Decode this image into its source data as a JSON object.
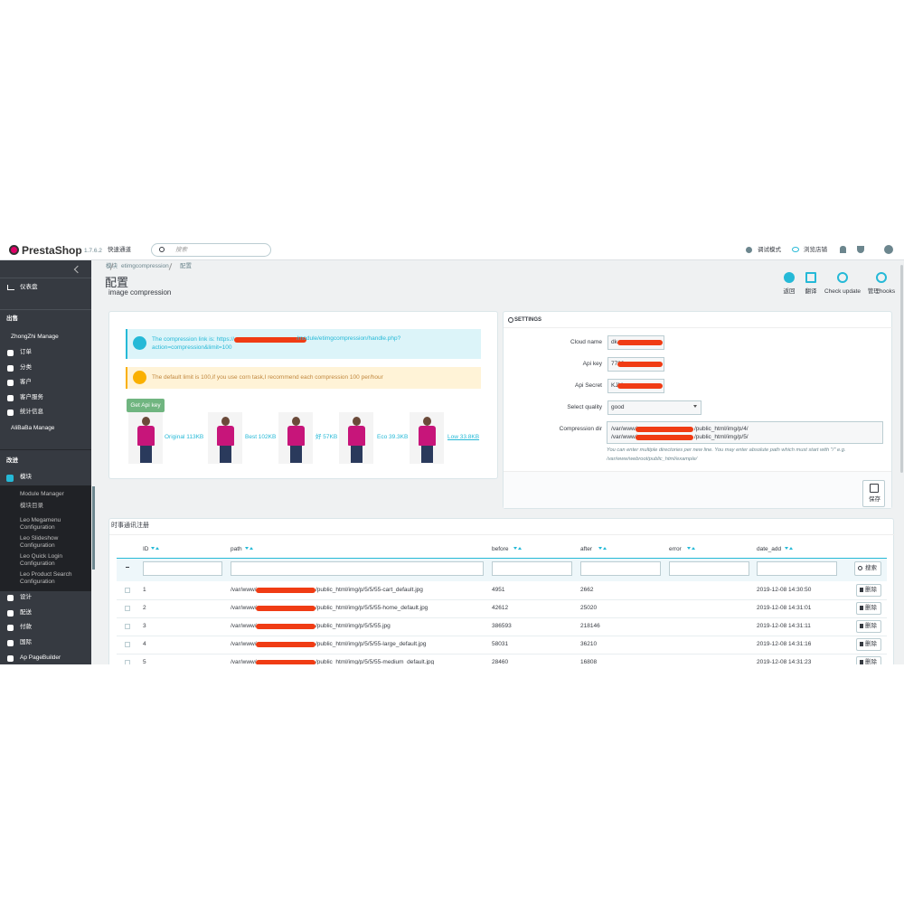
{
  "header": {
    "logo": "PrestaShop",
    "version": "1.7.6.2",
    "quick_access": "快速通道",
    "search_placeholder": "搜索",
    "debug_mode": "调试模式",
    "view_shop": "浏览店铺"
  },
  "sidebar": {
    "dashboard": "仪表盘",
    "sell": {
      "title": "出售",
      "items": [
        "ZhongZhi Manage",
        "订单",
        "分类",
        "客户",
        "客户服务",
        "统计信息",
        "AliBaBa Manage"
      ]
    },
    "improve": {
      "title": "改进",
      "active": "模块",
      "submenu": [
        "Module Manager",
        "模块目录",
        "Leo Megamenu Configuration",
        "Leo Slideshow Configuration",
        "Leo Quick Login Configuration",
        "Leo Product Search Configuration"
      ],
      "items": [
        "设计",
        "配送",
        "付款",
        "国际",
        "Ap PageBuilder"
      ]
    }
  },
  "page": {
    "breadcrumb": [
      "模块",
      "etimgcompression",
      "配置"
    ],
    "title": "配置",
    "subtitle": "image compression",
    "toolbar": [
      "返回",
      "翻译",
      "Check update",
      "管理hooks"
    ]
  },
  "compression": {
    "info_prefix": "The compression link is: https://",
    "info_suffix": "/module/etimgcompression/handle.php?action=compression&limit=100",
    "warning": "The default limit is 100,if you use corn task,I recommend each compression 100 per/hour",
    "button": "Get Api key",
    "images": [
      "Original 113KB",
      "Best 102KB",
      "好 57KB",
      "Eco 39.3KB",
      "Low 33.8KB"
    ]
  },
  "settings": {
    "title": "SETTINGS",
    "fields": [
      {
        "label": "Cloud name",
        "value": "dk"
      },
      {
        "label": "Api key",
        "value": "7789"
      },
      {
        "label": "Api Secret",
        "value": "KJM"
      }
    ],
    "quality": {
      "label": "Select quality",
      "value": "good"
    },
    "dir": {
      "label": "Compression dir",
      "lines": [
        {
          "start": "/var/www/",
          "end": "/public_html/img/p/4/"
        },
        {
          "start": "/var/www/",
          "end": "/public_html/img/p/5/"
        }
      ]
    },
    "help": "You can enter multiple directories per new line. You may enter absolute path which must start with \"/\" e.g. /var/www/webroot/public_html/example/",
    "save": "保存"
  },
  "table": {
    "title": "时事通讯注册",
    "columns": [
      "ID",
      "path",
      "before",
      "after",
      "error",
      "date_add"
    ],
    "search": "搜索",
    "delete": "删除",
    "rows": [
      {
        "id": "1",
        "path_start": "/var/www/",
        "path_end": "/public_html/img/p/5/5/55-cart_default.jpg",
        "before": "4951",
        "after": "2662",
        "date": "2019-12-08 14:30:50"
      },
      {
        "id": "2",
        "path_start": "/var/www/",
        "path_end": "/public_html/img/p/5/5/55-home_default.jpg",
        "before": "42612",
        "after": "25020",
        "date": "2019-12-08 14:31:01"
      },
      {
        "id": "3",
        "path_start": "/var/www/",
        "path_end": "/public_html/img/p/5/5/55.jpg",
        "before": "386593",
        "after": "218146",
        "date": "2019-12-08 14:31:11"
      },
      {
        "id": "4",
        "path_start": "/var/www/",
        "path_end": "/public_html/img/p/5/5/55-large_default.jpg",
        "before": "58031",
        "after": "36210",
        "date": "2019-12-08 14:31:16"
      },
      {
        "id": "5",
        "path_start": "/var/www/",
        "path_end": "/public_html/img/p/5/5/55-medium_default.jpg",
        "before": "28460",
        "after": "16808",
        "date": "2019-12-08 14:31:23"
      }
    ]
  }
}
